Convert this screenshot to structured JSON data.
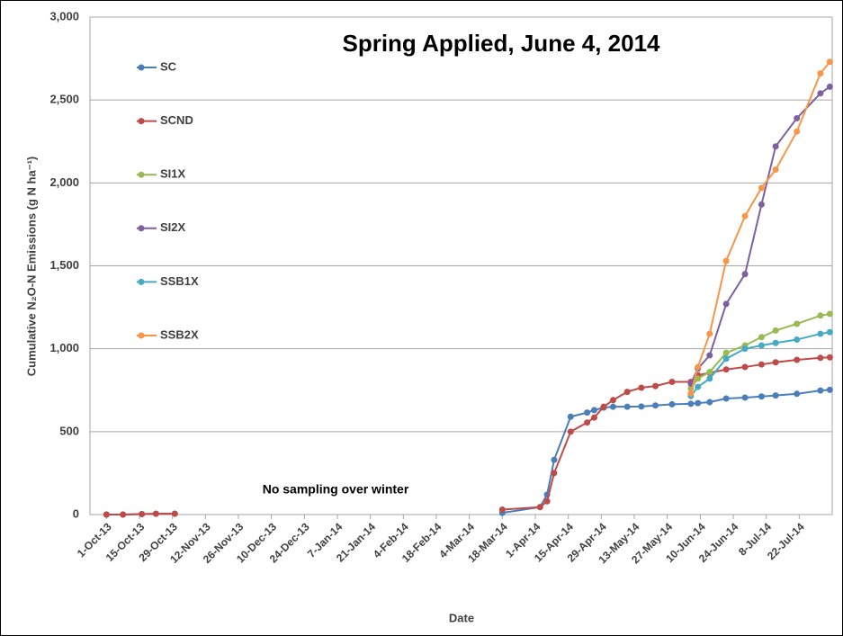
{
  "chart_data": {
    "type": "line",
    "title": "Spring Applied, June 4, 2014",
    "y_label": "Cumulative N₂O-N Emissions (g N ha⁻¹)",
    "x_label": "Date",
    "annotation": "No sampling over winter",
    "x": [
      "2013-10-01",
      "2013-10-08",
      "2013-10-16",
      "2013-10-22",
      "2013-10-30",
      "2014-03-18",
      "2014-04-03",
      "2014-04-06",
      "2014-04-09",
      "2014-04-16",
      "2014-04-23",
      "2014-04-26",
      "2014-04-30",
      "2014-05-04",
      "2014-05-10",
      "2014-05-16",
      "2014-05-22",
      "2014-05-29",
      "2014-06-06",
      "2014-06-09",
      "2014-06-14",
      "2014-06-21",
      "2014-06-29",
      "2014-07-06",
      "2014-07-12",
      "2014-07-21",
      "2014-07-31",
      "2014-08-04"
    ],
    "series": [
      {
        "name": "SC",
        "color": "#4a7ebb",
        "values": [
          0,
          0,
          3,
          5,
          5,
          10,
          45,
          120,
          330,
          590,
          615,
          630,
          645,
          650,
          650,
          652,
          658,
          665,
          668,
          672,
          678,
          700,
          705,
          712,
          718,
          728,
          748,
          752
        ]
      },
      {
        "name": "SCND",
        "color": "#be4b48",
        "values": [
          0,
          0,
          3,
          5,
          5,
          30,
          45,
          80,
          250,
          500,
          555,
          585,
          650,
          690,
          740,
          765,
          775,
          800,
          800,
          840,
          855,
          875,
          890,
          905,
          918,
          933,
          945,
          948
        ]
      },
      {
        "name": "SI1X",
        "color": "#98b954",
        "values": [
          null,
          null,
          null,
          null,
          null,
          null,
          null,
          null,
          null,
          null,
          null,
          null,
          null,
          null,
          null,
          null,
          null,
          null,
          760,
          820,
          860,
          975,
          1020,
          1070,
          1110,
          1150,
          1200,
          1210
        ]
      },
      {
        "name": "SI2X",
        "color": "#7d60a0",
        "values": [
          null,
          null,
          null,
          null,
          null,
          null,
          null,
          null,
          null,
          null,
          null,
          null,
          null,
          null,
          null,
          null,
          null,
          null,
          790,
          880,
          960,
          1270,
          1450,
          1870,
          2220,
          2390,
          2540,
          2580
        ]
      },
      {
        "name": "SSB1X",
        "color": "#46aac5",
        "values": [
          null,
          null,
          null,
          null,
          null,
          null,
          null,
          null,
          null,
          null,
          null,
          null,
          null,
          null,
          null,
          null,
          null,
          null,
          715,
          770,
          820,
          940,
          1000,
          1020,
          1035,
          1055,
          1090,
          1100
        ]
      },
      {
        "name": "SSB2X",
        "color": "#f79646",
        "values": [
          null,
          null,
          null,
          null,
          null,
          null,
          null,
          null,
          null,
          null,
          null,
          null,
          null,
          null,
          null,
          null,
          null,
          null,
          730,
          890,
          1090,
          1530,
          1800,
          1970,
          2080,
          2310,
          2660,
          2730
        ]
      }
    ],
    "xlim": [
      "2013-09-24",
      "2014-08-05"
    ],
    "xticks": [
      {
        "value": "2013-10-01",
        "label": "1-Oct-13"
      },
      {
        "value": "2013-10-15",
        "label": "15-Oct-13"
      },
      {
        "value": "2013-10-29",
        "label": "29-Oct-13"
      },
      {
        "value": "2013-11-12",
        "label": "12-Nov-13"
      },
      {
        "value": "2013-11-26",
        "label": "26-Nov-13"
      },
      {
        "value": "2013-12-10",
        "label": "10-Dec-13"
      },
      {
        "value": "2013-12-24",
        "label": "24-Dec-13"
      },
      {
        "value": "2014-01-07",
        "label": "7-Jan-14"
      },
      {
        "value": "2014-01-21",
        "label": "21-Jan-14"
      },
      {
        "value": "2014-02-04",
        "label": "4-Feb-14"
      },
      {
        "value": "2014-02-18",
        "label": "18-Feb-14"
      },
      {
        "value": "2014-03-04",
        "label": "4-Mar-14"
      },
      {
        "value": "2014-03-18",
        "label": "18-Mar-14"
      },
      {
        "value": "2014-04-01",
        "label": "1-Apr-14"
      },
      {
        "value": "2014-04-15",
        "label": "15-Apr-14"
      },
      {
        "value": "2014-04-29",
        "label": "29-Apr-14"
      },
      {
        "value": "2014-05-13",
        "label": "13-May-14"
      },
      {
        "value": "2014-05-27",
        "label": "27-May-14"
      },
      {
        "value": "2014-06-10",
        "label": "10-Jun-14"
      },
      {
        "value": "2014-06-24",
        "label": "24-Jun-14"
      },
      {
        "value": "2014-07-08",
        "label": "8-Jul-14"
      },
      {
        "value": "2014-07-22",
        "label": "22-Jul-14"
      }
    ],
    "ylim": [
      0,
      3000
    ],
    "yticks": [
      0,
      500,
      {
        "value": 1000,
        "label": "1,000"
      },
      {
        "value": 1500,
        "label": "1,500"
      },
      {
        "value": 2000,
        "label": "2,000"
      },
      {
        "value": 2500,
        "label": "2,500"
      },
      {
        "value": 3000,
        "label": "3,000"
      }
    ],
    "grid": true,
    "legend": "left"
  }
}
